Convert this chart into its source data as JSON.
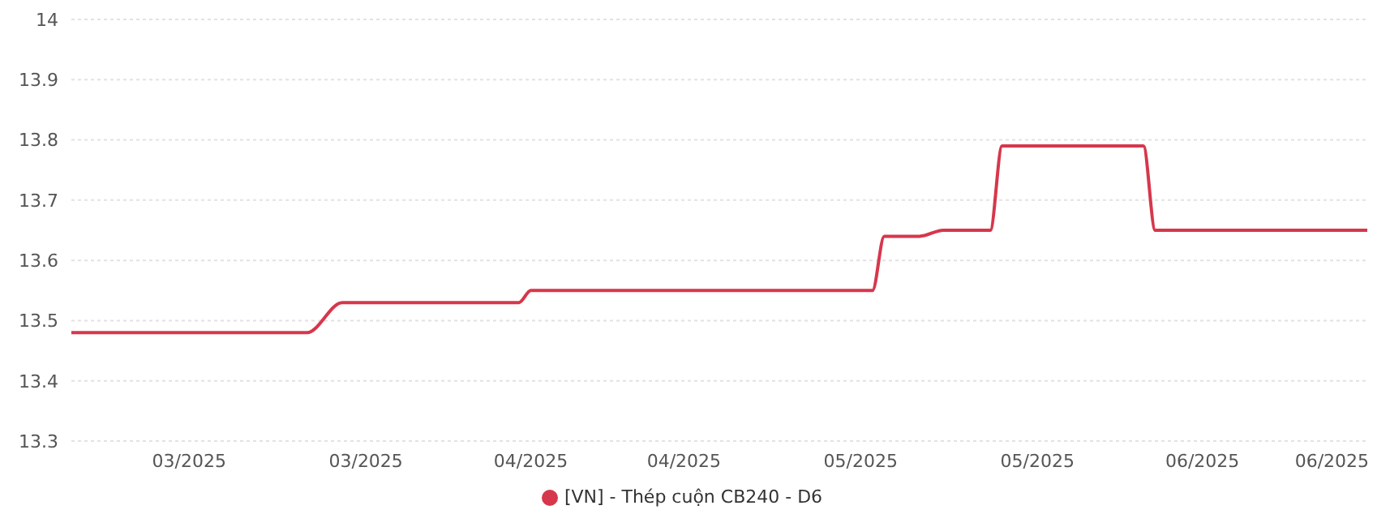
{
  "chart_data": {
    "type": "line",
    "x": [
      "2025-02-28",
      "2025-03-20",
      "2025-03-23",
      "2025-04-07",
      "2025-04-08",
      "2025-05-07",
      "2025-05-08",
      "2025-05-11",
      "2025-05-13",
      "2025-05-17",
      "2025-05-18",
      "2025-05-30",
      "2025-05-31",
      "2025-06-18"
    ],
    "series": [
      {
        "name": "[VN] - Thép cuộn CB240 - D6",
        "color": "#d6374c",
        "values": [
          13.48,
          13.48,
          13.53,
          13.53,
          13.55,
          13.55,
          13.64,
          13.64,
          13.65,
          13.65,
          13.79,
          13.79,
          13.65,
          13.65
        ]
      }
    ],
    "xlim": [
      "2025-02-28",
      "2025-06-18"
    ],
    "xticks": [
      {
        "value": "2025-03-10",
        "label": "03/2025"
      },
      {
        "value": "2025-03-25",
        "label": "03/2025"
      },
      {
        "value": "2025-04-08",
        "label": "04/2025"
      },
      {
        "value": "2025-04-21",
        "label": "04/2025"
      },
      {
        "value": "2025-05-06",
        "label": "05/2025"
      },
      {
        "value": "2025-05-21",
        "label": "05/2025"
      },
      {
        "value": "2025-06-04",
        "label": "06/2025"
      },
      {
        "value": "2025-06-15",
        "label": "06/2025"
      }
    ],
    "ylim": [
      13.3,
      14
    ],
    "yticks": [
      13.3,
      13.4,
      13.5,
      13.6,
      13.7,
      13.8,
      13.9,
      14
    ],
    "grid": "y",
    "legend": "bottom",
    "marker": "none",
    "line_style": "solid"
  }
}
